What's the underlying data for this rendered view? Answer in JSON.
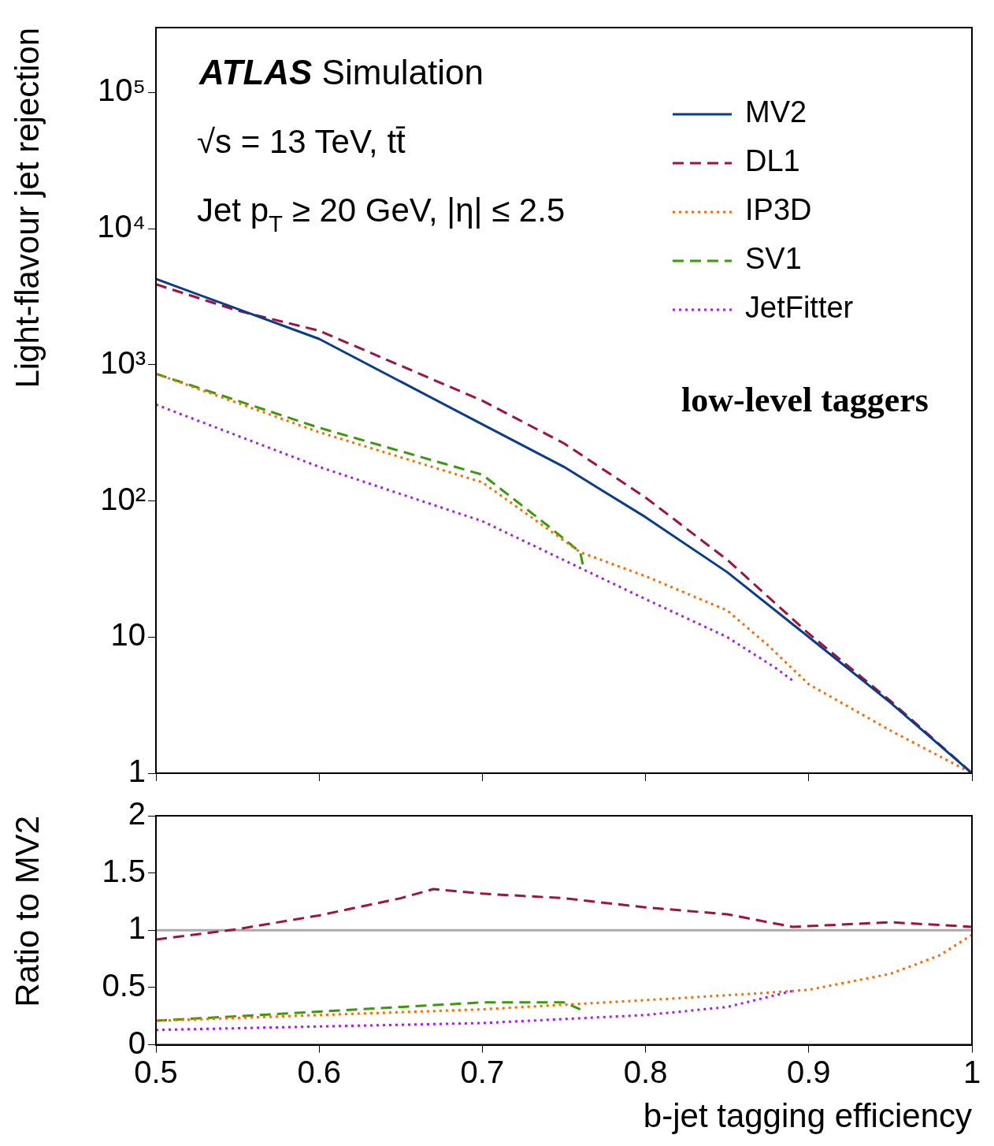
{
  "chart_data": [
    {
      "type": "line",
      "ylabel": "Light-flavour jet rejection",
      "log": "y",
      "legend": "top right",
      "grid": false,
      "tick_labels": "y",
      "xlim": [
        0.5,
        1
      ],
      "xticks": [
        0.5,
        0.6,
        0.7,
        0.8,
        0.9,
        1
      ],
      "ylim": [
        1,
        300000
      ],
      "yticks": [
        1,
        10,
        {
          "value": 100,
          "label": "10²"
        },
        {
          "value": 1000,
          "label": "10³"
        },
        {
          "value": 10000,
          "label": "10⁴"
        },
        {
          "value": 100000,
          "label": "10⁵"
        }
      ],
      "annotations": [
        "ATLAS Simulation",
        "√s = 13 TeV, tt̄",
        "Jet p$_{T}$ ≥ 20 GeV, |η| ≤ 2.5",
        "low-level taggers"
      ],
      "series": [
        {
          "name": "MV2",
          "color": "#0b3b8c",
          "line_style": "solid",
          "x": [
            0.5,
            0.6,
            0.7,
            0.75,
            0.8,
            0.85,
            0.9,
            0.95,
            1.0
          ],
          "values": [
            4270,
            1550,
            365,
            178,
            76,
            30,
            10,
            3.3,
            1
          ]
        },
        {
          "name": "DL1",
          "color": "#a0143c",
          "line_style": "dashed",
          "x": [
            0.5,
            0.55,
            0.6,
            0.7,
            0.75,
            0.8,
            0.85,
            0.9,
            0.95,
            1.0
          ],
          "values": [
            3900,
            2500,
            1780,
            545,
            265,
            106,
            37,
            10.6,
            3.4,
            1
          ]
        },
        {
          "name": "IP3D",
          "color": "#ff6a00",
          "line_style": "dotted",
          "x": [
            0.5,
            0.6,
            0.7,
            0.76,
            0.8,
            0.85,
            0.875,
            0.9,
            0.95,
            1.0
          ],
          "values": [
            860,
            320,
            137,
            42,
            28,
            15.7,
            8.7,
            4.5,
            2.06,
            1
          ]
        },
        {
          "name": "SV1",
          "color": "#3a9a0a",
          "line_style": "dashed",
          "x": [
            0.5,
            0.6,
            0.7,
            0.74,
            0.76,
            0.762
          ],
          "values": [
            860,
            345,
            156,
            66,
            42,
            32
          ]
        },
        {
          "name": "JetFitter",
          "color": "#a020f0",
          "line_style": "dotted",
          "x": [
            0.5,
            0.6,
            0.7,
            0.8,
            0.85,
            0.88,
            0.89
          ],
          "values": [
            510,
            178,
            71,
            19,
            10,
            5.9,
            4.8
          ]
        }
      ]
    },
    {
      "type": "line",
      "xlabel": "b-jet tagging efficiency",
      "ylabel": "Ratio to MV2",
      "grid": false,
      "legend": false,
      "xlim": [
        0.5,
        1
      ],
      "xticks": [
        0.5,
        0.6,
        0.7,
        0.8,
        0.9,
        1
      ],
      "ylim": [
        0,
        2
      ],
      "yticks": [
        0,
        0.5,
        1,
        1.5,
        2
      ],
      "ref_lines": [
        {
          "axis": "y",
          "value": 1,
          "color": "#aaaaaa"
        }
      ],
      "series": [
        {
          "color": "#a0143c",
          "line_style": "dashed",
          "x": [
            0.5,
            0.55,
            0.6,
            0.65,
            0.67,
            0.7,
            0.75,
            0.8,
            0.85,
            0.89,
            0.95,
            1.0
          ],
          "values": [
            0.92,
            1.01,
            1.13,
            1.28,
            1.36,
            1.32,
            1.28,
            1.2,
            1.14,
            1.03,
            1.07,
            1.03
          ]
        },
        {
          "color": "#ff6a00",
          "line_style": "dotted",
          "x": [
            0.5,
            0.6,
            0.7,
            0.8,
            0.87,
            0.9,
            0.95,
            0.98,
            1.0
          ],
          "values": [
            0.21,
            0.26,
            0.31,
            0.39,
            0.45,
            0.48,
            0.62,
            0.78,
            0.96
          ]
        },
        {
          "color": "#3a9a0a",
          "line_style": "dashed",
          "x": [
            0.5,
            0.6,
            0.7,
            0.75,
            0.76
          ],
          "values": [
            0.21,
            0.29,
            0.37,
            0.37,
            0.31
          ]
        },
        {
          "color": "#a020f0",
          "line_style": "dotted",
          "x": [
            0.5,
            0.6,
            0.7,
            0.8,
            0.85,
            0.89
          ],
          "values": [
            0.13,
            0.16,
            0.19,
            0.26,
            0.33,
            0.47
          ]
        }
      ]
    }
  ]
}
